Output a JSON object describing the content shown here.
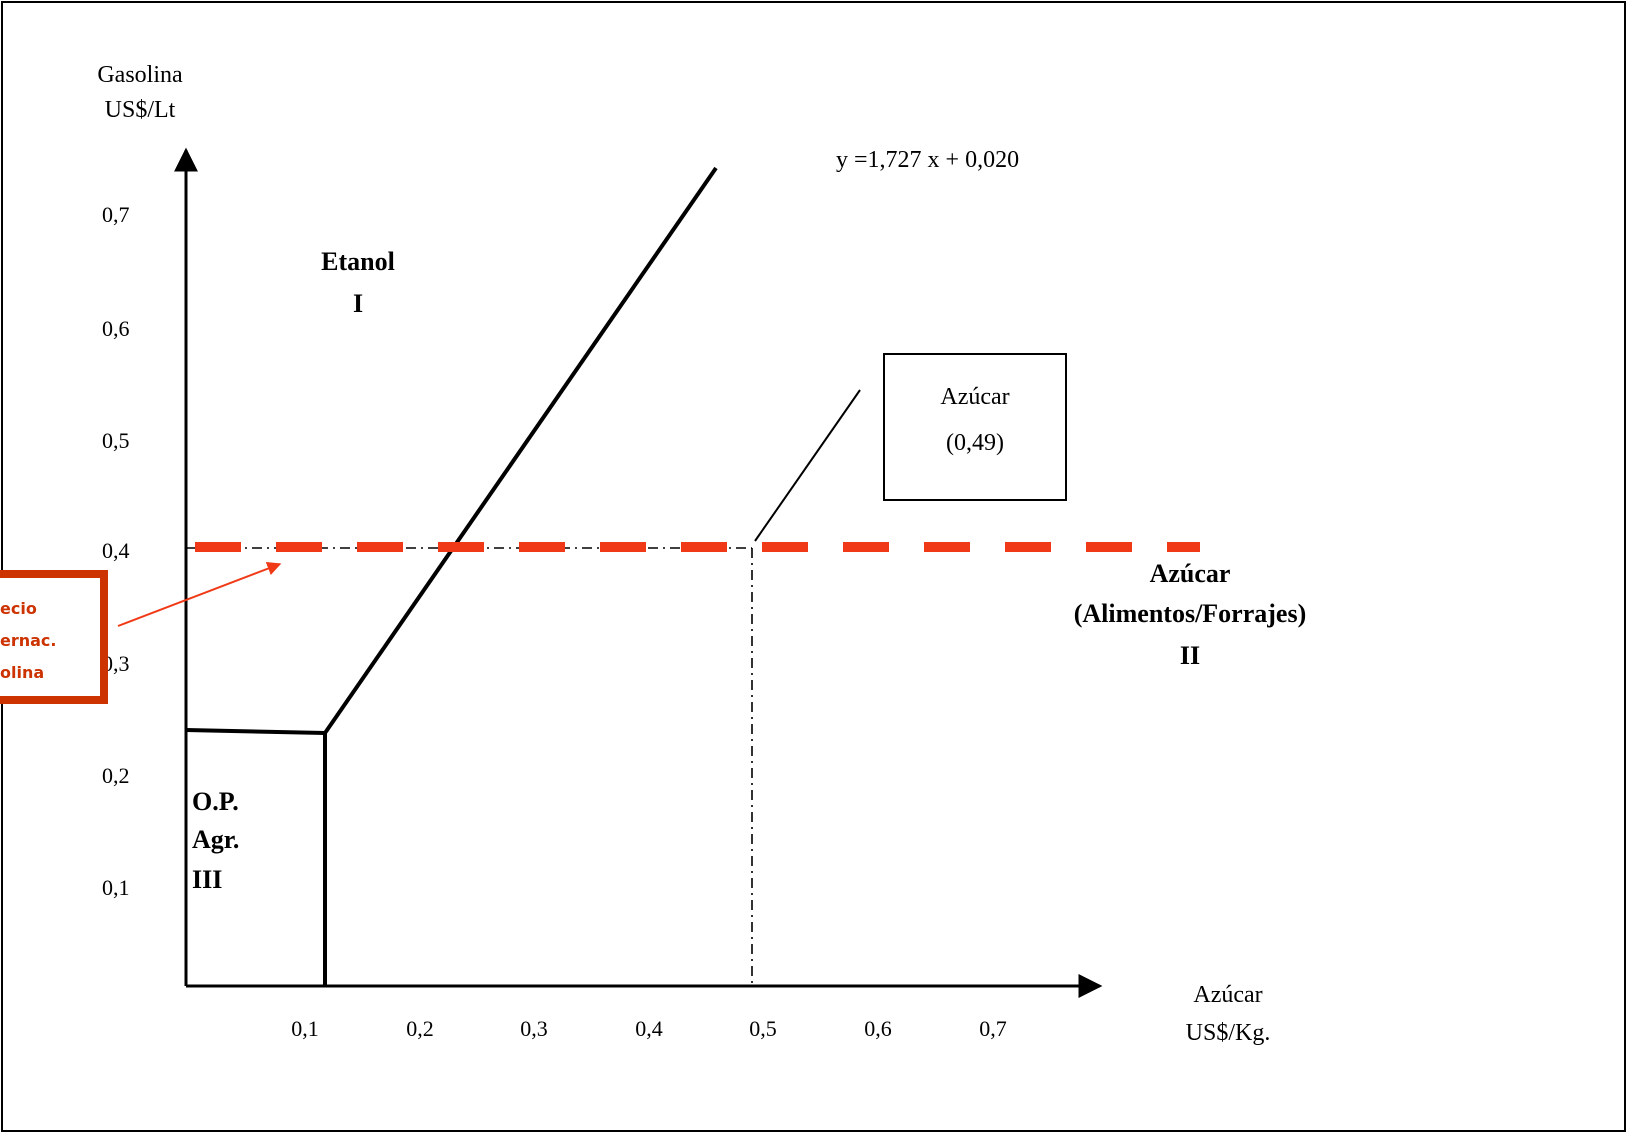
{
  "axes": {
    "y_title_line1": "Gasolina",
    "y_title_line2": "US$/Lt",
    "x_title_line1": "Azúcar",
    "x_title_line2": "US$/Kg.",
    "y_ticks": [
      "0,7",
      "0,6",
      "0,5",
      "0,4",
      "0,3",
      "0,2",
      "0,1"
    ],
    "x_ticks": [
      "0,1",
      "0,2",
      "0,3",
      "0,4",
      "0,5",
      "0,6",
      "0,7"
    ]
  },
  "equation": "y =1,727 x + 0,020",
  "regions": {
    "etanol": {
      "line1": "Etanol",
      "line2": "I"
    },
    "azucar": {
      "line1": "Azúcar",
      "line2": "(Alimentos/Forrajes)",
      "line3": "II"
    },
    "op_agr": {
      "line1": "O.P.",
      "line2": "Agr.",
      "line3": "III"
    }
  },
  "azucar_point_box": {
    "line1": "Azúcar",
    "line2": "(0,49)"
  },
  "intl_price_callout": {
    "line1": "ecio",
    "line2": "ernac.",
    "line3": "olina"
  },
  "colors": {
    "axis": "#000000",
    "intl_price_line": "#f03a17",
    "callout_border": "#cc3300",
    "callout_text": "#cc3300"
  }
}
